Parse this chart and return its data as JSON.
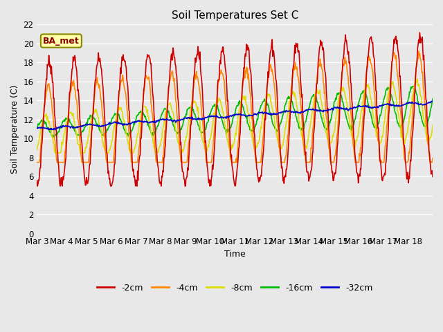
{
  "title": "Soil Temperatures Set C",
  "xlabel": "Time",
  "ylabel": "Soil Temperature (C)",
  "annotation": "BA_met",
  "ylim": [
    0,
    22
  ],
  "yticks": [
    0,
    2,
    4,
    6,
    8,
    10,
    12,
    14,
    16,
    18,
    20,
    22
  ],
  "xtick_labels": [
    "Mar 3",
    "Mar 4",
    "Mar 5",
    "Mar 6",
    "Mar 7",
    "Mar 8",
    "Mar 9",
    "Mar 10",
    "Mar 11",
    "Mar 12",
    "Mar 13",
    "Mar 14",
    "Mar 15",
    "Mar 16",
    "Mar 17",
    "Mar 18"
  ],
  "fig_bg": "#e8e8e8",
  "grid_color": "#ffffff",
  "series_colors": {
    "-2cm": "#cc0000",
    "-4cm": "#ff8800",
    "-8cm": "#dddd00",
    "-16cm": "#00bb00",
    "-32cm": "#0000cc"
  },
  "lw": 1.2,
  "n_days": 16,
  "points_per_day": 48,
  "annotation_text_color": "#880000",
  "annotation_bg": "#ffffaa",
  "annotation_edge": "#888800"
}
